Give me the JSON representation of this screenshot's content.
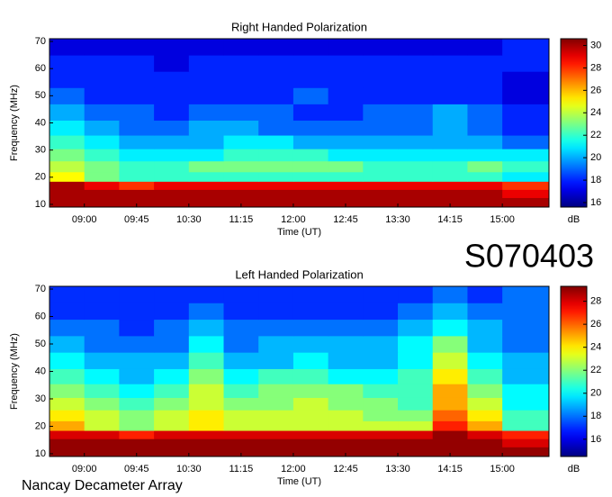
{
  "page": {
    "code": "S070403",
    "footer": "Nancay Decameter Array"
  },
  "chart_data": [
    {
      "type": "heatmap",
      "title": "Right Handed Polarization",
      "xlabel": "Time (UT)",
      "ylabel": "Frequency (MHz)",
      "colormap": "jet",
      "colorbar_label": "dB",
      "x": [
        8.75,
        9.25,
        9.75,
        10.25,
        10.75,
        11.25,
        11.75,
        12.25,
        12.75,
        13.25,
        13.75,
        14.25,
        14.75,
        15.25
      ],
      "y": [
        11,
        14,
        17,
        20,
        24,
        28,
        33,
        38,
        44,
        50,
        56,
        62,
        68
      ],
      "z": [
        [
          30,
          30,
          30,
          30,
          30,
          30,
          30,
          30,
          30,
          30,
          30,
          30,
          30,
          30
        ],
        [
          30,
          30,
          30,
          30,
          30,
          30,
          30,
          30,
          30,
          30,
          30,
          30,
          30,
          29
        ],
        [
          30,
          29,
          28,
          29,
          29,
          29,
          29,
          29,
          29,
          29,
          29,
          29,
          29,
          28
        ],
        [
          25,
          23,
          22,
          22,
          22,
          22,
          22,
          22,
          22,
          22,
          22,
          22,
          22,
          21
        ],
        [
          24,
          23,
          22,
          22,
          23,
          23,
          23,
          23,
          23,
          22,
          22,
          22,
          23,
          22
        ],
        [
          23,
          22,
          21,
          21,
          21,
          22,
          22,
          22,
          21,
          21,
          21,
          21,
          21,
          21
        ],
        [
          22,
          21,
          20,
          20,
          20,
          21,
          21,
          20,
          20,
          20,
          20,
          20,
          20,
          19
        ],
        [
          21,
          20,
          19,
          19,
          20,
          20,
          19,
          19,
          19,
          19,
          19,
          20,
          19,
          18
        ],
        [
          20,
          19,
          19,
          18,
          19,
          19,
          19,
          18,
          18,
          19,
          19,
          20,
          19,
          18
        ],
        [
          19,
          18,
          18,
          18,
          18,
          18,
          18,
          19,
          18,
          18,
          18,
          18,
          18,
          17
        ],
        [
          18,
          18,
          18,
          18,
          18,
          18,
          18,
          18,
          18,
          18,
          18,
          18,
          18,
          17
        ],
        [
          18,
          18,
          18,
          17,
          18,
          18,
          18,
          18,
          18,
          18,
          18,
          18,
          18,
          18
        ],
        [
          17,
          17,
          17,
          17,
          17,
          17,
          17,
          17,
          17,
          17,
          17,
          17,
          17,
          18
        ]
      ],
      "xlim": [
        8.5,
        15.67
      ],
      "ylim": [
        9,
        71
      ],
      "zlim": [
        15.6,
        30.6
      ],
      "xticks": [
        {
          "value": 9,
          "label": "09:00"
        },
        {
          "value": 9.75,
          "label": "09:45"
        },
        {
          "value": 10.5,
          "label": "10:30"
        },
        {
          "value": 11.25,
          "label": "11:15"
        },
        {
          "value": 12,
          "label": "12:00"
        },
        {
          "value": 12.75,
          "label": "12:45"
        },
        {
          "value": 13.5,
          "label": "13:30"
        },
        {
          "value": 14.25,
          "label": "14:15"
        },
        {
          "value": 15,
          "label": "15:00"
        }
      ],
      "yticks": [
        10,
        20,
        30,
        40,
        50,
        60,
        70
      ],
      "zticks": [
        16,
        18,
        20,
        22,
        24,
        26,
        28,
        30
      ]
    },
    {
      "type": "heatmap",
      "title": "Left Handed Polarization",
      "xlabel": "Time (UT)",
      "ylabel": "Frequency (MHz)",
      "colormap": "jet",
      "colorbar_label": "dB",
      "x": [
        8.75,
        9.25,
        9.75,
        10.25,
        10.75,
        11.25,
        11.75,
        12.25,
        12.75,
        13.25,
        13.75,
        14.25,
        14.75,
        15.25
      ],
      "y": [
        11,
        14,
        17,
        20,
        24,
        28,
        33,
        38,
        44,
        50,
        56,
        62,
        68
      ],
      "z": [
        [
          29,
          29,
          29,
          29,
          29,
          29,
          29,
          29,
          29,
          29,
          29,
          29,
          29,
          29
        ],
        [
          29,
          29,
          29,
          29,
          29,
          29,
          29,
          29,
          29,
          29,
          29,
          29,
          29,
          28
        ],
        [
          28,
          28,
          27,
          28,
          28,
          28,
          28,
          28,
          28,
          28,
          28,
          29,
          28,
          27
        ],
        [
          25,
          23,
          22,
          23,
          24,
          23,
          23,
          23,
          23,
          23,
          23,
          27,
          25,
          21
        ],
        [
          24,
          23,
          22,
          23,
          24,
          23,
          23,
          23,
          23,
          22,
          22,
          26,
          24,
          21
        ],
        [
          23,
          22,
          21,
          22,
          23,
          22,
          22,
          23,
          22,
          22,
          21,
          25,
          23,
          20
        ],
        [
          22,
          21,
          20,
          21,
          23,
          21,
          22,
          22,
          22,
          21,
          21,
          25,
          22,
          20
        ],
        [
          21,
          20,
          19,
          20,
          22,
          20,
          21,
          21,
          20,
          20,
          21,
          24,
          21,
          19
        ],
        [
          20,
          19,
          19,
          19,
          21,
          19,
          19,
          20,
          19,
          19,
          20,
          23,
          20,
          19
        ],
        [
          19,
          18,
          18,
          18,
          20,
          18,
          19,
          19,
          19,
          19,
          20,
          22,
          19,
          18
        ],
        [
          18,
          18,
          17,
          18,
          19,
          18,
          18,
          18,
          18,
          18,
          19,
          20,
          19,
          18
        ],
        [
          17,
          17,
          17,
          17,
          18,
          17,
          17,
          17,
          17,
          17,
          18,
          19,
          18,
          18
        ],
        [
          17,
          17,
          17,
          17,
          17,
          17,
          17,
          17,
          17,
          17,
          17,
          18,
          17,
          18
        ]
      ],
      "xlim": [
        8.5,
        15.67
      ],
      "ylim": [
        9,
        71
      ],
      "zlim": [
        14.5,
        29.3
      ],
      "xticks": [
        {
          "value": 9,
          "label": "09:00"
        },
        {
          "value": 9.75,
          "label": "09:45"
        },
        {
          "value": 10.5,
          "label": "10:30"
        },
        {
          "value": 11.25,
          "label": "11:15"
        },
        {
          "value": 12,
          "label": "12:00"
        },
        {
          "value": 12.75,
          "label": "12:45"
        },
        {
          "value": 13.5,
          "label": "13:30"
        },
        {
          "value": 14.25,
          "label": "14:15"
        },
        {
          "value": 15,
          "label": "15:00"
        }
      ],
      "yticks": [
        10,
        20,
        30,
        40,
        50,
        60,
        70
      ],
      "zticks": [
        16,
        18,
        20,
        22,
        24,
        26,
        28
      ]
    }
  ]
}
